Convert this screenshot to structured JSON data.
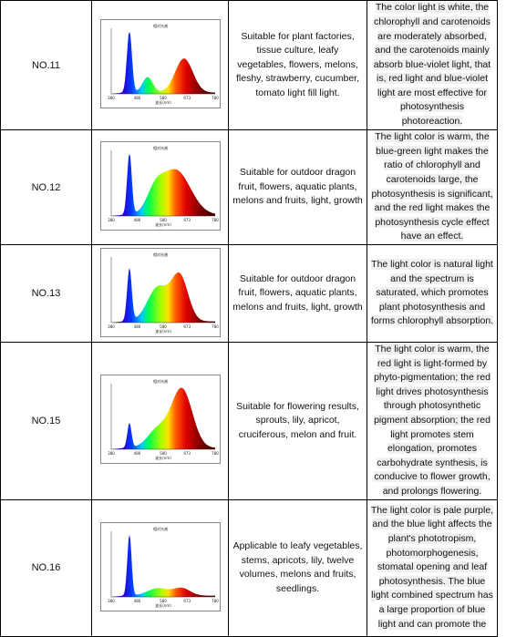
{
  "spectrum_labels": {
    "title": "相对光谱",
    "xticks": [
      "380",
      "480",
      "580",
      "673",
      "780"
    ],
    "xlabel": "波长(nm)"
  },
  "table": {
    "rows": [
      {
        "id": "NO.11",
        "description": "Suitable for plant factories, tissue culture, leafy vegetables, flowers, melons, fleshy, strawberry, cucumber, tomato light fill light.",
        "effect": "The color light is white, the chlorophyll and carotenoids are moderately absorbed, and the carotenoids mainly absorb blue-violet light, that is, red light and blue-violet light are most effective for photosynthesis photoreaction."
      },
      {
        "id": "NO.12",
        "description": "Suitable for outdoor dragon fruit, flowers, aquatic plants, melons and fruits, light, growth",
        "effect": "The light color is warm, the blue-green light makes the ratio of chlorophyll and carotenoids large, the photosynthesis is significant, and the red light makes the photosynthesis cycle effect have an effect."
      },
      {
        "id": "NO.13",
        "description": "Suitable for outdoor dragon fruit, flowers, aquatic plants, melons and fruits, light, growth",
        "effect": "The light color is natural light and the spectrum is saturated, which promotes plant photosynthesis and forms chlorophyll absorption."
      },
      {
        "id": "NO.15",
        "description": "Suitable for flowering results, sprouts, lily, apricot, cruciferous, melon and fruit.",
        "effect": "The light color is warm, the red light is light-formed by phyto-pigmentation; the red light drives photosynthesis through photosynthetic pigment absorption; the red light promotes stem elongation, promotes carbohydrate synthesis, is conducive to flower growth, and prolongs flowering."
      },
      {
        "id": "NO.16",
        "description": "Applicable to leafy vegetables, stems, apricots, lily, twelve volumes, melons and fruits, seedlings.",
        "effect": "The light color is pale purple, and the blue light affects the plant's phototropism, photomorphogenesis, stomatal opening and leaf photosynthesis. The blue light combined spectrum has a large proportion of blue light and can promote the"
      }
    ]
  }
}
